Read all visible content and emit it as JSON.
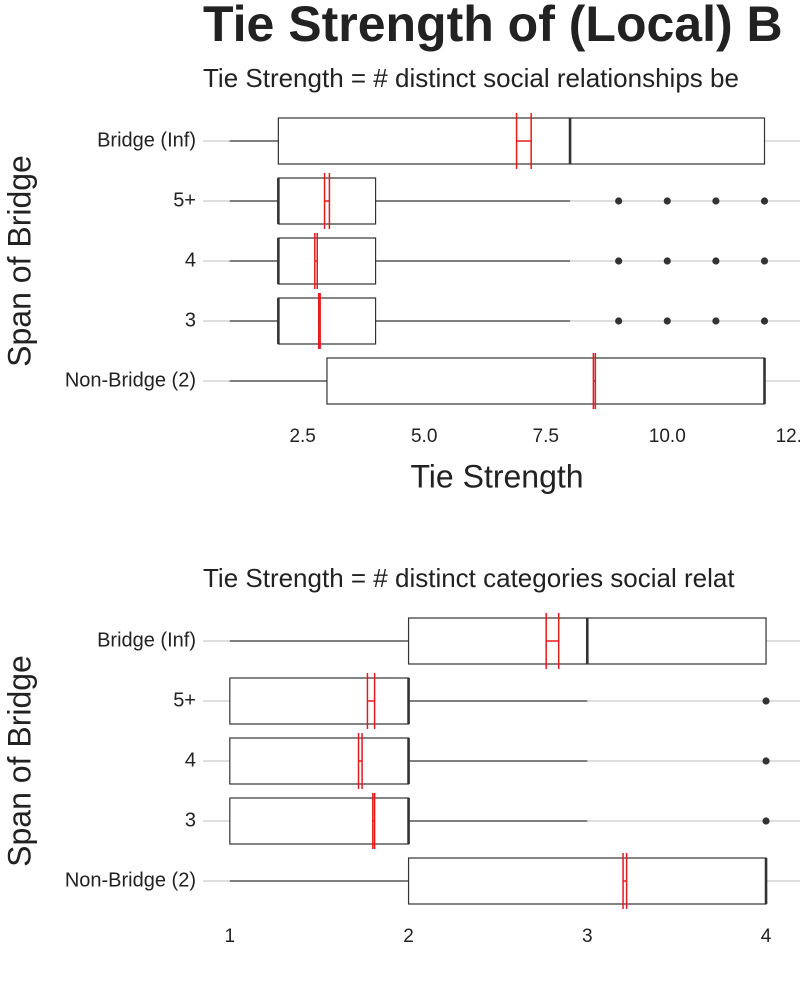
{
  "chart_data": [
    {
      "type": "box",
      "title": "Tie Strength of (Local) B",
      "subtitle": "Tie Strength = # distinct social relationships be",
      "x_label": "Tie Strength",
      "y_label": "Span of Bridge",
      "categories": [
        "Bridge (Inf)",
        "5+",
        "4",
        "3",
        "Non-Bridge (2)"
      ],
      "xlim": [
        0.45,
        12.73
      ],
      "xticks": [
        2.5,
        {
          "value": 5,
          "label": "5.0"
        },
        7.5,
        {
          "value": 10,
          "label": "10.0"
        },
        {
          "value": 12.5,
          "label": "12."
        }
      ],
      "box_color": "#333333",
      "mean_color": "#e41a1c",
      "grid": true,
      "boxes": [
        {
          "min": 1,
          "q1": 2,
          "median": 8,
          "q3": 12,
          "max": 12,
          "outliers": [],
          "mean_ci": [
            6.9,
            7.2
          ]
        },
        {
          "min": 1,
          "q1": 2,
          "median": 2,
          "q3": 4,
          "max": 8,
          "outliers": [
            9,
            10,
            11,
            12
          ],
          "mean_ci": [
            2.95,
            3.05
          ]
        },
        {
          "min": 1,
          "q1": 2,
          "median": 2,
          "q3": 4,
          "max": 8,
          "outliers": [
            9,
            10,
            11,
            12
          ],
          "mean_ci": [
            2.75,
            2.8
          ]
        },
        {
          "min": 1,
          "q1": 2,
          "median": 2,
          "q3": 4,
          "max": 8,
          "outliers": [
            9,
            10,
            11,
            12
          ],
          "mean_ci": [
            2.83,
            2.86
          ]
        },
        {
          "min": 1,
          "q1": 3,
          "median": 12,
          "q3": 12,
          "max": 12,
          "outliers": [],
          "mean_ci": [
            8.48,
            8.52
          ]
        }
      ]
    },
    {
      "type": "box",
      "subtitle": "Tie Strength = # distinct categories social relat",
      "y_label": "Span of Bridge",
      "categories": [
        "Bridge (Inf)",
        "5+",
        "4",
        "3",
        "Non-Bridge (2)"
      ],
      "xlim": [
        0.85,
        4.19
      ],
      "xticks": [
        1,
        2,
        3,
        4
      ],
      "box_color": "#333333",
      "mean_color": "#e41a1c",
      "grid": true,
      "boxes": [
        {
          "min": 1,
          "q1": 2,
          "median": 3,
          "q3": 4,
          "max": 4,
          "outliers": [],
          "mean_ci": [
            2.77,
            2.84
          ]
        },
        {
          "min": 1,
          "q1": 1,
          "median": 2,
          "q3": 2,
          "max": 3,
          "outliers": [
            4
          ],
          "mean_ci": [
            1.77,
            1.81
          ]
        },
        {
          "min": 1,
          "q1": 1,
          "median": 2,
          "q3": 2,
          "max": 3,
          "outliers": [
            4
          ],
          "mean_ci": [
            1.72,
            1.74
          ]
        },
        {
          "min": 1,
          "q1": 1,
          "median": 2,
          "q3": 2,
          "max": 3,
          "outliers": [
            4
          ],
          "mean_ci": [
            1.8,
            1.81
          ]
        },
        {
          "min": 1,
          "q1": 2,
          "median": 4,
          "q3": 4,
          "max": 4,
          "outliers": [],
          "mean_ci": [
            3.2,
            3.22
          ]
        }
      ]
    }
  ]
}
